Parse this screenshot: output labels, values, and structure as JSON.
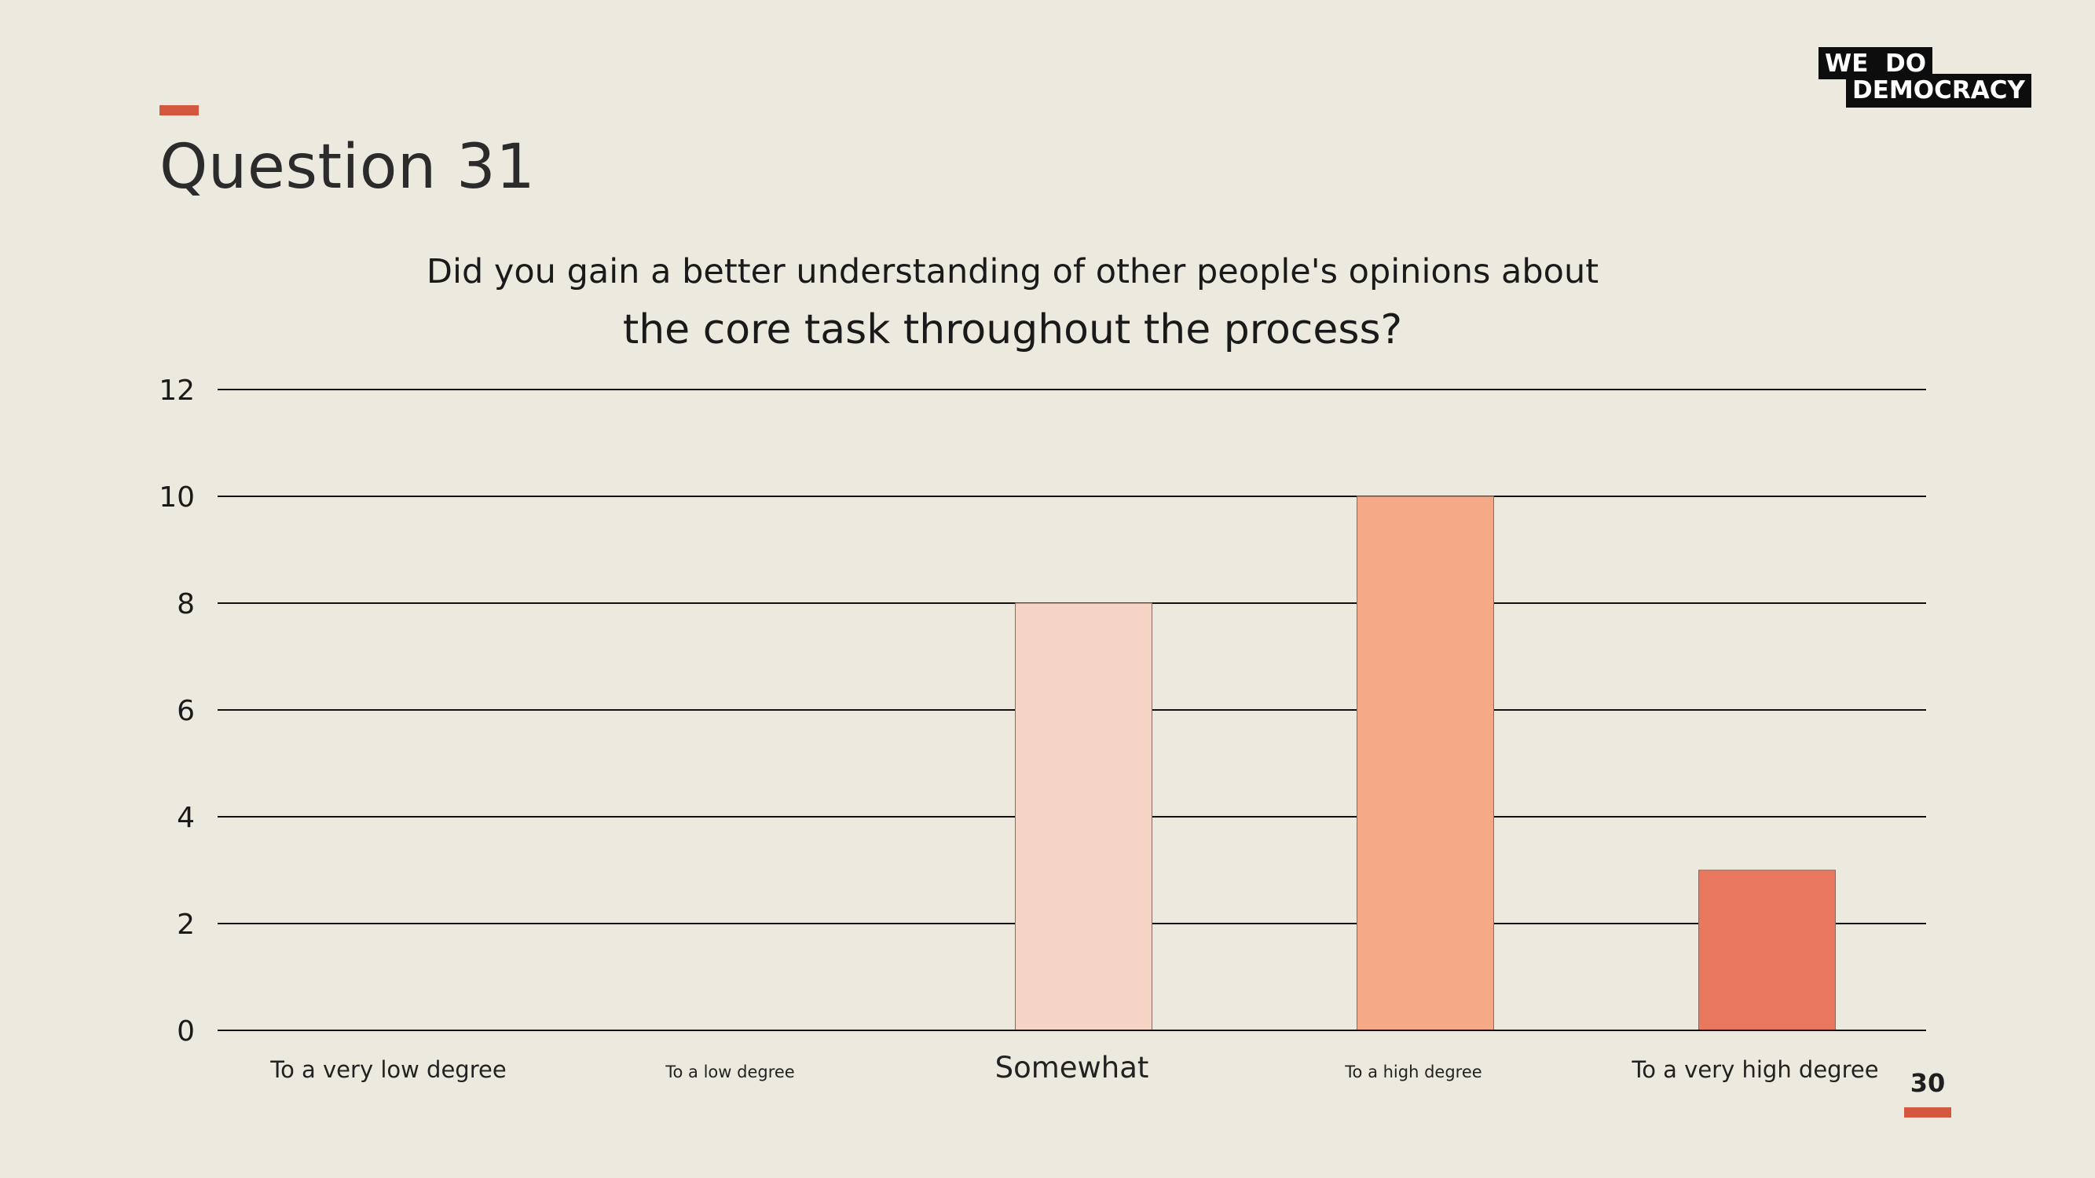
{
  "slide": {
    "title": "Question 31",
    "page_number": "30"
  },
  "logo": {
    "line1": "WE  DO",
    "line2": "DEMOCRACY"
  },
  "colors": {
    "background": "#ECE9DF",
    "accent": "#D4573F",
    "bar_somewhat": "#F5D4C4",
    "bar_high": "#F5A986",
    "bar_very_high": "#E8775E"
  },
  "chart_data": {
    "type": "bar",
    "title_lines": [
      "Did you gain a better understanding of other people's opinions about",
      "the core task throughout the process?"
    ],
    "categories": [
      "To a very low degree",
      "To a low degree",
      "Somewhat",
      "To a high degree",
      "To a very high degree"
    ],
    "values": [
      0,
      0,
      8,
      10,
      3
    ],
    "bar_colors": [
      "#F5D4C4",
      "#F5D4C4",
      "#F5D4C4",
      "#F5A986",
      "#E8775E"
    ],
    "ylim": [
      0,
      12
    ],
    "yticks": [
      0,
      2,
      4,
      6,
      8,
      10,
      12
    ],
    "grid": true,
    "legend": "none"
  }
}
